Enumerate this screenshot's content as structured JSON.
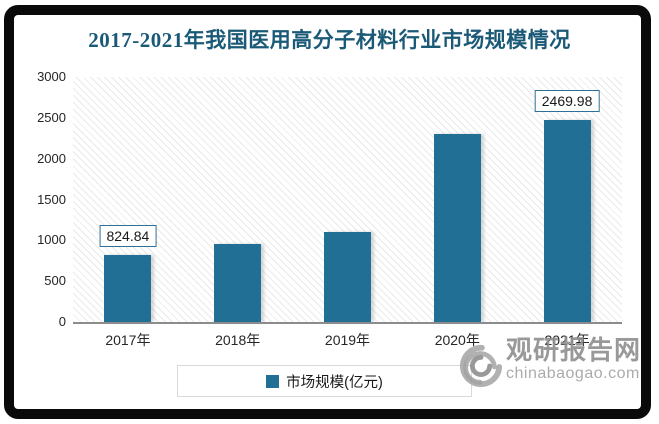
{
  "chart_data": {
    "type": "bar",
    "title": "2017-2021年我国医用高分子材料行业市场规模情况",
    "categories": [
      "2017年",
      "2018年",
      "2019年",
      "2020年",
      "2021年"
    ],
    "values": [
      824.84,
      960,
      1100,
      2300,
      2469.98
    ],
    "series_name": "市场规模(亿元)",
    "labeled_points": [
      {
        "index": 0,
        "label": "824.84"
      },
      {
        "index": 4,
        "label": "2469.98"
      }
    ],
    "ylim": [
      0,
      3000
    ],
    "yticks": [
      0,
      500,
      1000,
      1500,
      2000,
      2500,
      3000
    ],
    "grid": false,
    "legend_position": "bottom"
  },
  "legend": {
    "label": "市场规模(亿元)"
  },
  "watermark": {
    "brand": "观研报告网",
    "domain": "chinabaogao.com"
  },
  "colors": {
    "bar": "#216f94",
    "title": "#1b5a77",
    "data_label_border": "#2d7296",
    "watermark_text": "#8f8f8f"
  }
}
